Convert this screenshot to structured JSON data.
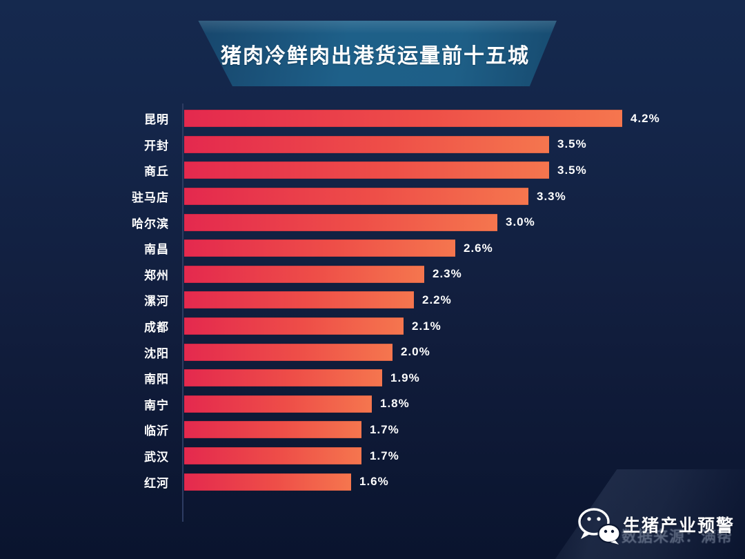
{
  "title": {
    "text": "猪肉冷鲜肉出港货运量前十五城"
  },
  "chart_data": {
    "type": "bar",
    "orientation": "horizontal",
    "title": "猪肉冷鲜肉出港货运量前十五城",
    "categories": [
      "昆明",
      "开封",
      "商丘",
      "驻马店",
      "哈尔滨",
      "南昌",
      "郑州",
      "漯河",
      "成都",
      "沈阳",
      "南阳",
      "南宁",
      "临沂",
      "武汉",
      "红河"
    ],
    "values": [
      4.2,
      3.5,
      3.5,
      3.3,
      3.0,
      2.6,
      2.3,
      2.2,
      2.1,
      2.0,
      1.9,
      1.8,
      1.7,
      1.7,
      1.6
    ],
    "value_labels": [
      "4.2%",
      "3.5%",
      "3.5%",
      "3.3%",
      "3.0%",
      "2.6%",
      "2.3%",
      "2.2%",
      "2.1%",
      "2.0%",
      "1.9%",
      "1.8%",
      "1.7%",
      "1.7%",
      "1.6%"
    ],
    "unit": "%",
    "xlim": [
      0,
      4.2
    ],
    "grid": false,
    "legend": false,
    "bar_gradient": [
      "#E4294E",
      "#F5764E"
    ]
  },
  "footer": {
    "brand": "生猪产业预警",
    "watermark": "数据来源：满帮",
    "icon": "wechat-icon"
  },
  "colors": {
    "background_top": "#15294E",
    "background_bottom": "#0A142E",
    "banner_blue": "#1E6089",
    "axis_line": "#2D3C62",
    "bar_start": "#E4294E",
    "bar_end": "#F5764E",
    "text": "#FFFFFF"
  }
}
